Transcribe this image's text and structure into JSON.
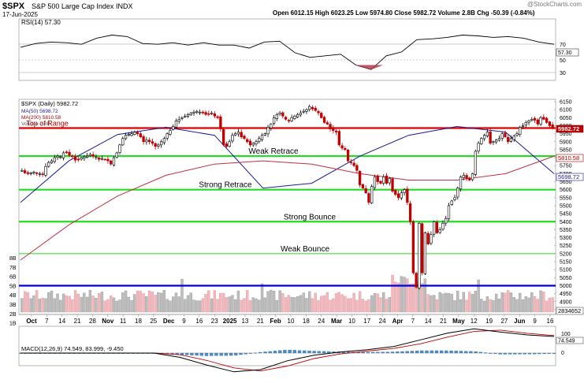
{
  "header": {
    "symbol": "$SPX",
    "name": "S&P 500 Large Cap Index",
    "exchange": "INDX",
    "date": "17-Jun-2025",
    "ohlc": "Open 6012.15  High 6023.25  Low 5974.80  Close 5982.72  Volume 2.8B  Chg -50.39 (-0.84%)",
    "watermark": "@StockCharts.com"
  },
  "rsi": {
    "label": "RSI(14) 57.30",
    "last_tag": "57.30",
    "ticks": [
      70,
      50,
      30
    ],
    "ylim": [
      10,
      90
    ]
  },
  "price": {
    "legend": [
      "$SPX (Daily) 5982.72",
      "MA(50) 5698.72",
      "MA(200) 5810.58",
      "Volume 2.8B"
    ],
    "last_price_tag": "5982.72",
    "ma200_tag": "5810.58",
    "ma50_tag": "5698.72",
    "volume_tag": "2834652",
    "ticks": [
      6150,
      6100,
      6050,
      6000,
      5950,
      5900,
      5850,
      5800,
      5750,
      5700,
      5650,
      5600,
      5550,
      5500,
      5450,
      5400,
      5350,
      5300,
      5250,
      5200,
      5150,
      5100,
      5050,
      5000,
      4950,
      4900,
      4850
    ],
    "volume_ticks": [
      "8B",
      "7B",
      "6B",
      "5B",
      "4B",
      "3B",
      "2B",
      "1B"
    ],
    "ylim": [
      4820,
      6165
    ],
    "levels": [
      {
        "label": "Top of Range",
        "value": 5985,
        "color": "#e00000"
      },
      {
        "label": "Weak Retrace",
        "value": 5810,
        "color": "#22dd22"
      },
      {
        "label": "Strong Retrace",
        "value": 5600,
        "color": "#22dd22"
      },
      {
        "label": "Strong Bounce",
        "value": 5400,
        "color": "#22dd22"
      },
      {
        "label": "Weak Bounce",
        "value": 5200,
        "color": "#22dd22"
      },
      {
        "label": "",
        "value": 5000,
        "color": "#0000dd"
      }
    ]
  },
  "macd": {
    "label": "MACD(12,26,9) 74.549, 83.999, -9.450",
    "tags": [
      "100",
      "74.549",
      "0"
    ]
  },
  "x_axis": [
    "Oct",
    "7",
    "14",
    "21",
    "28",
    "Nov",
    "11",
    "18",
    "25",
    "Dec",
    "9",
    "16",
    "23",
    "2025",
    "13",
    "21",
    "Feb",
    "10",
    "18",
    "24",
    "Mar",
    "10",
    "17",
    "24",
    "Apr",
    "7",
    "14",
    "21",
    "May",
    "12",
    "19",
    "27",
    "Jun",
    "9",
    "16"
  ],
  "chart_data": {
    "type": "candlestick",
    "title": "$SPX S&P 500 Large Cap Index INDX",
    "series": [
      {
        "name": "$SPX (Daily)",
        "close": [
          5720,
          5705,
          5700,
          5705,
          5710,
          5705,
          5700,
          5695,
          5745,
          5770,
          5780,
          5800,
          5810,
          5805,
          5830,
          5835,
          5815,
          5810,
          5785,
          5790,
          5800,
          5805,
          5810,
          5820,
          5810,
          5805,
          5790,
          5795,
          5790,
          5780,
          5760,
          5800,
          5830,
          5880,
          5920,
          5940,
          5945,
          5950,
          5960,
          5950,
          5930,
          5900,
          5910,
          5900,
          5890,
          5870,
          5880,
          5900,
          5920,
          5950,
          5970,
          5995,
          6030,
          6040,
          6050,
          6060,
          6070,
          6080,
          6085,
          6090,
          6085,
          6080,
          6070,
          6070,
          6080,
          6060,
          6050,
          5980,
          5880,
          5870,
          5900,
          5940,
          5950,
          5960,
          5930,
          5920,
          5900,
          5880,
          5890,
          5900,
          5920,
          5940,
          5950,
          5990,
          6010,
          6050,
          6070,
          6080,
          6060,
          6040,
          6030,
          6050,
          6060,
          6070,
          6080,
          6090,
          6100,
          6120,
          6105,
          6095,
          6080,
          6050,
          6020,
          6010,
          5980,
          5970,
          5960,
          5880,
          5860,
          5850,
          5780,
          5770,
          5750,
          5720,
          5630,
          5610,
          5580,
          5520,
          5620,
          5680,
          5650,
          5640,
          5680,
          5640,
          5670,
          5590,
          5570,
          5550,
          5580,
          5600,
          5520,
          5400,
          5080,
          4990,
          5390,
          5080,
          5330,
          5260,
          5320,
          5400,
          5330,
          5350,
          5390,
          5420,
          5500,
          5530,
          5550,
          5610,
          5680,
          5690,
          5670,
          5660,
          5700,
          5840,
          5890,
          5920,
          5940,
          5960,
          5890,
          5900,
          5910,
          5920,
          5950,
          5930,
          5900,
          5920,
          5935,
          5950,
          5990,
          6000,
          6020,
          6030,
          6040,
          6035,
          6010,
          6050,
          6040,
          6020,
          6000,
          5983
        ]
      },
      {
        "name": "MA(50)",
        "values": [
          5520,
          5780,
          5945,
          5990,
          5940,
          5610,
          5640,
          5810,
          5940,
          5995,
          5960,
          5700
        ]
      },
      {
        "name": "MA(200)",
        "values": [
          5160,
          5380,
          5560,
          5690,
          5760,
          5780,
          5760,
          5700,
          5660,
          5660,
          5700,
          5810
        ]
      }
    ],
    "rsi_values": [
      53,
      58,
      60,
      59,
      57,
      65,
      69,
      67,
      58,
      57,
      59,
      56,
      59,
      56,
      56,
      52,
      60,
      61,
      46,
      40,
      42,
      44,
      30,
      24,
      42,
      47,
      63,
      64,
      66,
      69,
      68,
      66,
      67,
      65,
      60,
      57
    ],
    "macd_values": [
      0,
      0,
      0,
      0,
      0,
      0,
      -20,
      -55,
      -85,
      -75,
      -35,
      -10,
      5,
      15,
      30,
      60,
      90,
      110,
      95,
      82,
      75
    ]
  }
}
